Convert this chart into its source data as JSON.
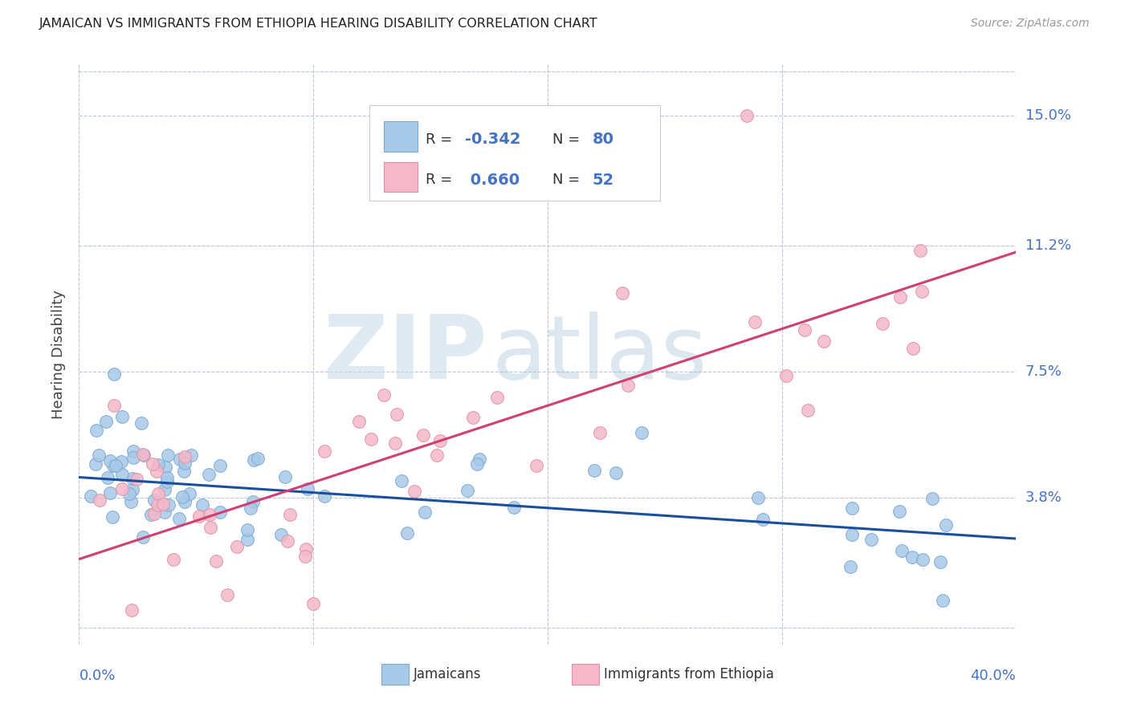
{
  "title": "JAMAICAN VS IMMIGRANTS FROM ETHIOPIA HEARING DISABILITY CORRELATION CHART",
  "source": "Source: ZipAtlas.com",
  "ylabel": "Hearing Disability",
  "ytick_vals": [
    0.038,
    0.075,
    0.112,
    0.15
  ],
  "ytick_labels": [
    "3.8%",
    "7.5%",
    "11.2%",
    "15.0%"
  ],
  "xlim": [
    0.0,
    0.4
  ],
  "ylim": [
    -0.005,
    0.165
  ],
  "watermark_zip": "ZIP",
  "watermark_atlas": "atlas",
  "legend_label1": "Jamaicans",
  "legend_label2": "Immigrants from Ethiopia",
  "R1": -0.342,
  "N1": 80,
  "R2": 0.66,
  "N2": 52,
  "color_blue": "#a8c8e8",
  "color_pink": "#f4b8c8",
  "color_blue_line": "#1a4fa0",
  "color_pink_line": "#d04070",
  "color_label": "#4472c4",
  "color_grid": "#b8c8d8",
  "blue_line_x0": 0.0,
  "blue_line_y0": 0.044,
  "blue_line_x1": 0.4,
  "blue_line_y1": 0.026,
  "pink_line_x0": 0.0,
  "pink_line_y0": 0.02,
  "pink_line_x1": 0.4,
  "pink_line_y1": 0.11
}
